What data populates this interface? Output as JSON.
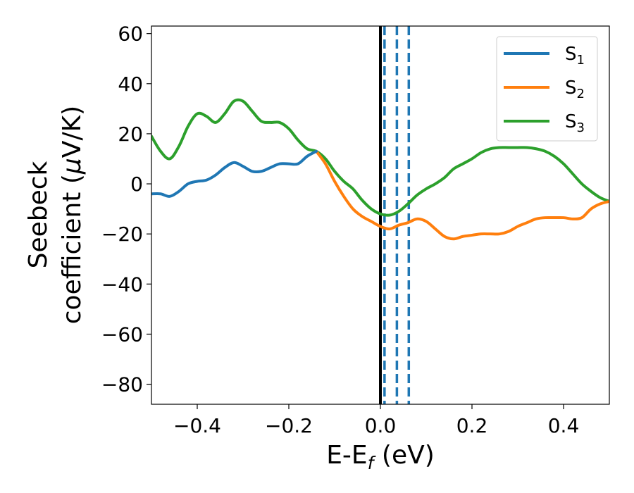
{
  "chart_data": {
    "type": "line",
    "xlabel": "E-E",
    "xlabel_sub": "f",
    "xlabel_unit": " (eV)",
    "ylabel_line1": "Seebeck",
    "ylabel_line2": "coefficient  (",
    "ylabel_mu": "μ",
    "ylabel_unit": "V/K)",
    "xlim": [
      -0.5,
      0.5
    ],
    "ylim": [
      -88,
      63
    ],
    "xticks": [
      -0.4,
      -0.2,
      0.0,
      0.2,
      0.4
    ],
    "xtick_labels": [
      "−0.4",
      "−0.2",
      "0.0",
      "0.2",
      "0.4"
    ],
    "yticks": [
      60,
      40,
      20,
      0,
      -20,
      -40,
      -60,
      -80
    ],
    "ytick_labels": [
      "60",
      "40",
      "20",
      "0",
      "−20",
      "−40",
      "−60",
      "−80"
    ],
    "grid": false,
    "legend_position": "top-right",
    "legend": [
      {
        "main": "S",
        "sub": "1",
        "color": "#1f77b4"
      },
      {
        "main": "S",
        "sub": "2",
        "color": "#ff7f0e"
      },
      {
        "main": "S",
        "sub": "3",
        "color": "#2ca02c"
      }
    ],
    "series": [
      {
        "color": "#1f77b4",
        "x": [
          -0.5,
          -0.48,
          -0.46,
          -0.44,
          -0.42,
          -0.4,
          -0.38,
          -0.36,
          -0.34,
          -0.32,
          -0.3,
          -0.28,
          -0.26,
          -0.24,
          -0.22,
          -0.2,
          -0.18,
          -0.16,
          -0.14
        ],
        "y": [
          -4,
          -4,
          -5,
          -3,
          0,
          1,
          1.5,
          3.5,
          6.5,
          8.5,
          7,
          5,
          5,
          6.5,
          8,
          8,
          8,
          11,
          13
        ]
      },
      {
        "color": "#ff7f0e",
        "x": [
          -0.14,
          -0.12,
          -0.1,
          -0.08,
          -0.06,
          -0.04,
          -0.02,
          0.0,
          0.02,
          0.04,
          0.06,
          0.08,
          0.1,
          0.12,
          0.14,
          0.16,
          0.18,
          0.2,
          0.22,
          0.24,
          0.26,
          0.28,
          0.3,
          0.32,
          0.34,
          0.36,
          0.38,
          0.4,
          0.42,
          0.44,
          0.46,
          0.48,
          0.5
        ],
        "y": [
          13,
          8,
          1,
          -5,
          -10,
          -13,
          -15,
          -17,
          -18,
          -16.5,
          -15.5,
          -14,
          -15,
          -18,
          -21,
          -22,
          -21,
          -20.5,
          -20,
          -20,
          -20,
          -19,
          -17,
          -15.5,
          -14,
          -13.5,
          -13.5,
          -13.5,
          -14,
          -13.5,
          -10,
          -8,
          -7
        ]
      },
      {
        "color": "#2ca02c",
        "x": [
          -0.5,
          -0.48,
          -0.46,
          -0.44,
          -0.42,
          -0.4,
          -0.38,
          -0.36,
          -0.34,
          -0.32,
          -0.3,
          -0.28,
          -0.26,
          -0.24,
          -0.22,
          -0.2,
          -0.18,
          -0.16,
          -0.14,
          -0.12,
          -0.1,
          -0.08,
          -0.06,
          -0.04,
          -0.02,
          0.0,
          0.02,
          0.04,
          0.06,
          0.08,
          0.1,
          0.12,
          0.14,
          0.16,
          0.18,
          0.2,
          0.22,
          0.24,
          0.26,
          0.28,
          0.3,
          0.32,
          0.34,
          0.36,
          0.38,
          0.4,
          0.42,
          0.44,
          0.46,
          0.48,
          0.5
        ],
        "y": [
          19,
          13,
          10,
          15,
          23,
          28,
          27,
          24.5,
          28,
          33,
          33,
          29,
          25,
          24.5,
          24.5,
          22,
          17.5,
          14,
          13,
          10,
          5,
          1,
          -2,
          -6.5,
          -10,
          -12,
          -12.5,
          -11,
          -8,
          -4.5,
          -2,
          0,
          2.5,
          6,
          8,
          10,
          12.5,
          14,
          14.5,
          14.5,
          14.5,
          14.5,
          14,
          13,
          11,
          8,
          4,
          0,
          -3,
          -5.5,
          -7
        ]
      }
    ],
    "vlines": [
      {
        "x": 0.0,
        "color": "#000000",
        "style": "solid"
      },
      {
        "x": 0.009,
        "color": "#1f77b4",
        "style": "dashed"
      },
      {
        "x": 0.036,
        "color": "#1f77b4",
        "style": "dashed"
      },
      {
        "x": 0.062,
        "color": "#1f77b4",
        "style": "dashed"
      }
    ]
  }
}
